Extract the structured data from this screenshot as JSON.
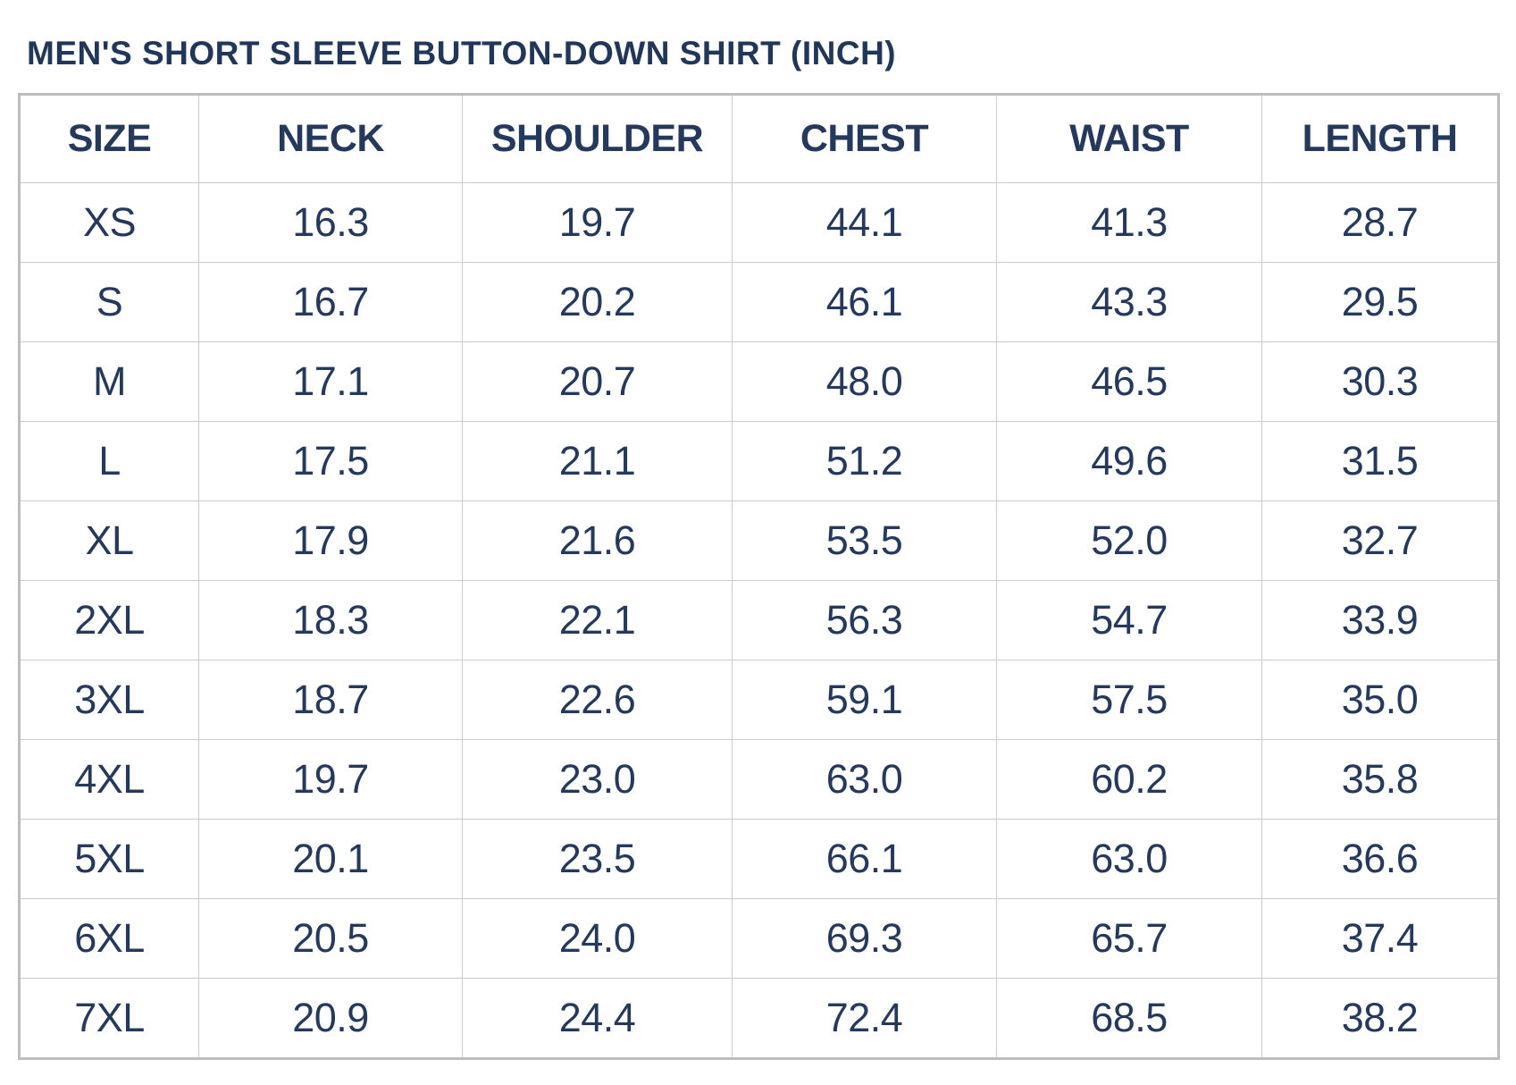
{
  "title": "MEN'S SHORT SLEEVE BUTTON-DOWN SHIRT (INCH)",
  "colors": {
    "text": "#24395b",
    "grid_border": "#cacaca",
    "outer_border": "#bdbdbd",
    "background": "#ffffff"
  },
  "table": {
    "columns": [
      "SIZE",
      "NECK",
      "SHOULDER",
      "CHEST",
      "WAIST",
      "LENGTH"
    ],
    "rows": [
      {
        "size": "XS",
        "neck": "16.3",
        "shoulder": "19.7",
        "chest": "44.1",
        "waist": "41.3",
        "length": "28.7"
      },
      {
        "size": "S",
        "neck": "16.7",
        "shoulder": "20.2",
        "chest": "46.1",
        "waist": "43.3",
        "length": "29.5"
      },
      {
        "size": "M",
        "neck": "17.1",
        "shoulder": "20.7",
        "chest": "48.0",
        "waist": "46.5",
        "length": "30.3"
      },
      {
        "size": "L",
        "neck": "17.5",
        "shoulder": "21.1",
        "chest": "51.2",
        "waist": "49.6",
        "length": "31.5"
      },
      {
        "size": "XL",
        "neck": "17.9",
        "shoulder": "21.6",
        "chest": "53.5",
        "waist": "52.0",
        "length": "32.7"
      },
      {
        "size": "2XL",
        "neck": "18.3",
        "shoulder": "22.1",
        "chest": "56.3",
        "waist": "54.7",
        "length": "33.9"
      },
      {
        "size": "3XL",
        "neck": "18.7",
        "shoulder": "22.6",
        "chest": "59.1",
        "waist": "57.5",
        "length": "35.0"
      },
      {
        "size": "4XL",
        "neck": "19.7",
        "shoulder": "23.0",
        "chest": "63.0",
        "waist": "60.2",
        "length": "35.8"
      },
      {
        "size": "5XL",
        "neck": "20.1",
        "shoulder": "23.5",
        "chest": "66.1",
        "waist": "63.0",
        "length": "36.6"
      },
      {
        "size": "6XL",
        "neck": "20.5",
        "shoulder": "24.0",
        "chest": "69.3",
        "waist": "65.7",
        "length": "37.4"
      },
      {
        "size": "7XL",
        "neck": "20.9",
        "shoulder": "24.4",
        "chest": "72.4",
        "waist": "68.5",
        "length": "38.2"
      }
    ]
  }
}
